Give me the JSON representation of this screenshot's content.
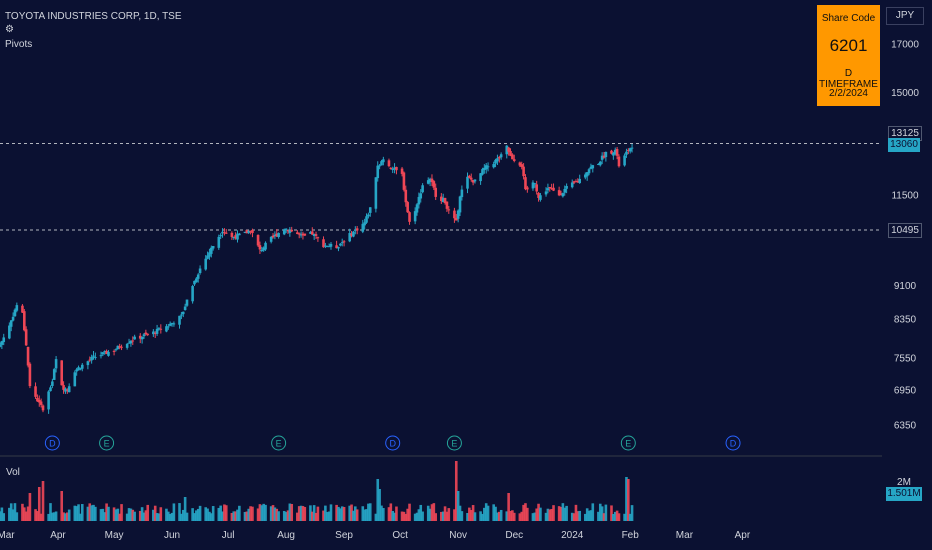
{
  "header": {
    "title": "TOYOTA INDUSTRIES CORP, 1D, TSE",
    "pivots_label": "Pivots"
  },
  "info_box": {
    "line1": "Share Code",
    "line2": "6201",
    "line3": "D TIMEFRAME",
    "line4": "2/2/2024"
  },
  "currency": "JPY",
  "colors": {
    "background": "#0b1132",
    "up": "#26a6c6",
    "down": "#ef4756",
    "info_box": "#ff9800",
    "marker_d": "#2962ff",
    "marker_e": "#26a69a"
  },
  "price_tags": {
    "pivot_high": "13125",
    "last": "13060",
    "pivot_low": "10495",
    "volume_last": "1.501M",
    "volume_scale": "2M"
  },
  "chart_data": {
    "type": "candlestick",
    "ylim": [
      6100,
      17600
    ],
    "y_ticks": [
      6350,
      6950,
      7550,
      8350,
      9100,
      11500,
      15000,
      17000
    ],
    "x_tick_labels": [
      "Mar",
      "Apr",
      "May",
      "Jun",
      "Jul",
      "Aug",
      "Sep",
      "Oct",
      "Nov",
      "Dec",
      "2024",
      "Feb",
      "Mar",
      "Apr"
    ],
    "pivot_lines": [
      13125,
      10495
    ],
    "volume_label": "Vol",
    "markers": [
      {
        "type": "D",
        "date": "2023-03-29"
      },
      {
        "type": "E",
        "date": "2023-04-27"
      },
      {
        "type": "E",
        "date": "2023-07-28"
      },
      {
        "type": "D",
        "date": "2023-09-27"
      },
      {
        "type": "E",
        "date": "2023-10-30"
      },
      {
        "type": "E",
        "date": "2024-01-31"
      },
      {
        "type": "D",
        "date": "2024-03-27"
      }
    ],
    "anchors": [
      [
        "2023-03-01",
        7800
      ],
      [
        "2023-03-06",
        8200
      ],
      [
        "2023-03-10",
        8650
      ],
      [
        "2023-03-13",
        8450
      ],
      [
        "2023-03-15",
        7800
      ],
      [
        "2023-03-17",
        7000
      ],
      [
        "2023-03-22",
        6700
      ],
      [
        "2023-03-24",
        6600
      ],
      [
        "2023-03-29",
        7100
      ],
      [
        "2023-03-31",
        7500
      ],
      [
        "2023-04-03",
        7000
      ],
      [
        "2023-04-06",
        6950
      ],
      [
        "2023-04-10",
        7300
      ],
      [
        "2023-04-20",
        7550
      ],
      [
        "2023-05-01",
        7700
      ],
      [
        "2023-05-10",
        7900
      ],
      [
        "2023-05-22",
        8050
      ],
      [
        "2023-05-30",
        8200
      ],
      [
        "2023-06-06",
        8400
      ],
      [
        "2023-06-12",
        9100
      ],
      [
        "2023-06-16",
        9500
      ],
      [
        "2023-06-22",
        10000
      ],
      [
        "2023-06-28",
        10500
      ],
      [
        "2023-07-03",
        10300
      ],
      [
        "2023-07-10",
        10400
      ],
      [
        "2023-07-13",
        10500
      ],
      [
        "2023-07-18",
        9950
      ],
      [
        "2023-07-24",
        10250
      ],
      [
        "2023-07-31",
        10550
      ],
      [
        "2023-08-03",
        10500
      ],
      [
        "2023-08-10",
        10300
      ],
      [
        "2023-08-15",
        10400
      ],
      [
        "2023-08-21",
        10100
      ],
      [
        "2023-08-28",
        10050
      ],
      [
        "2023-09-05",
        10400
      ],
      [
        "2023-09-12",
        10700
      ],
      [
        "2023-09-15",
        11100
      ],
      [
        "2023-09-19",
        12400
      ],
      [
        "2023-09-22",
        12600
      ],
      [
        "2023-09-27",
        12300
      ],
      [
        "2023-10-02",
        12100
      ],
      [
        "2023-10-04",
        11300
      ],
      [
        "2023-10-06",
        10700
      ],
      [
        "2023-10-10",
        11200
      ],
      [
        "2023-10-13",
        11800
      ],
      [
        "2023-10-17",
        12000
      ],
      [
        "2023-10-20",
        11500
      ],
      [
        "2023-10-25",
        11300
      ],
      [
        "2023-10-27",
        11000
      ],
      [
        "2023-10-31",
        10700
      ],
      [
        "2023-11-02",
        11500
      ],
      [
        "2023-11-06",
        12000
      ],
      [
        "2023-11-10",
        11900
      ],
      [
        "2023-11-15",
        12300
      ],
      [
        "2023-11-20",
        12500
      ],
      [
        "2023-11-24",
        12700
      ],
      [
        "2023-11-27",
        13000
      ],
      [
        "2023-11-29",
        12700
      ],
      [
        "2023-12-01",
        12600
      ],
      [
        "2023-12-05",
        12400
      ],
      [
        "2023-12-07",
        11600
      ],
      [
        "2023-12-12",
        11900
      ],
      [
        "2023-12-14",
        11400
      ],
      [
        "2023-12-19",
        11700
      ],
      [
        "2023-12-25",
        11500
      ],
      [
        "2023-12-29",
        11700
      ],
      [
        "2024-01-04",
        11900
      ],
      [
        "2024-01-10",
        12300
      ],
      [
        "2024-01-15",
        12500
      ],
      [
        "2024-01-19",
        12800
      ],
      [
        "2024-01-24",
        12900
      ],
      [
        "2024-01-26",
        12400
      ],
      [
        "2024-01-29",
        12700
      ],
      [
        "2024-01-31",
        12900
      ],
      [
        "2024-02-02",
        13060
      ]
    ],
    "volume_spikes": [
      [
        "2023-03-17",
        1.4
      ],
      [
        "2023-03-22",
        1.7
      ],
      [
        "2023-03-24",
        2.0
      ],
      [
        "2023-04-03",
        1.5
      ],
      [
        "2023-06-08",
        1.2
      ],
      [
        "2023-09-19",
        2.1
      ],
      [
        "2023-09-20",
        1.6
      ],
      [
        "2023-10-31",
        3.0
      ],
      [
        "2023-11-01",
        1.5
      ],
      [
        "2023-11-28",
        1.4
      ],
      [
        "2024-01-30",
        2.2
      ],
      [
        "2024-01-31",
        2.1
      ]
    ]
  }
}
